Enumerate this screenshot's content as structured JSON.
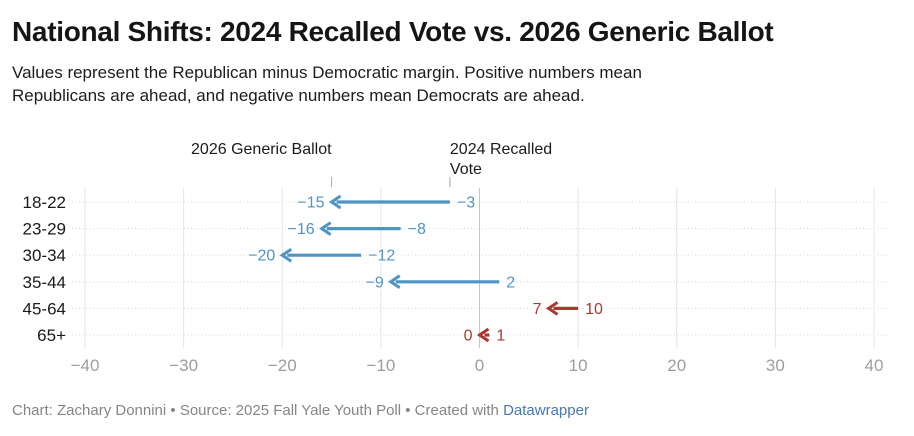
{
  "header": {
    "title": "National Shifts: 2024 Recalled Vote vs. 2026 Generic Ballot",
    "subtitle": "Values represent the Republican minus Democratic margin. Positive numbers mean Republicans are ahead, and negative numbers mean Democrats are ahead."
  },
  "chart_data": {
    "type": "arrow",
    "title": "National Shifts: 2024 Recalled Vote vs. 2026 Generic Ballot",
    "subtitle": "Values represent the Republican minus Democratic margin. Positive numbers mean Republicans are ahead, and negative numbers mean Democrats are ahead.",
    "column_labels": {
      "end_label": "2026 Generic Ballot",
      "start_label": "2024 Recalled Vote"
    },
    "categories": [
      "18-22",
      "23-29",
      "30-34",
      "35-44",
      "45-64",
      "65+"
    ],
    "series": [
      {
        "name": "2024 Recalled Vote",
        "values": [
          -3,
          -8,
          -12,
          2,
          10,
          1
        ]
      },
      {
        "name": "2026 Generic Ballot",
        "values": [
          -15,
          -16,
          -20,
          -9,
          7,
          0
        ]
      }
    ],
    "row_colors": [
      "#4e94c4",
      "#4e94c4",
      "#4e94c4",
      "#4e94c4",
      "#ab382f",
      "#ab382f"
    ],
    "xlim": [
      -40,
      40
    ],
    "xticks": [
      -40,
      -30,
      -20,
      -10,
      0,
      10,
      20,
      30,
      40
    ],
    "grid": true,
    "legend_position": "column labels above first row",
    "colors": {
      "blue": "#4e94c4",
      "red": "#ab382f",
      "gridline": "#e4e4e4",
      "zero_line": "#c6c6c6",
      "row_dotted_line": "#d8d8d8",
      "header_tick": "#a8a8a8",
      "axis_text": "#9d9d9d",
      "row_label_text": "#1a1a1a"
    }
  },
  "footer": {
    "credit": "Chart: Zachary Donnini • Source: 2025 Fall Yale Youth Poll • Created with ",
    "link_label": "Datawrapper",
    "link_color": "#4479b8"
  }
}
